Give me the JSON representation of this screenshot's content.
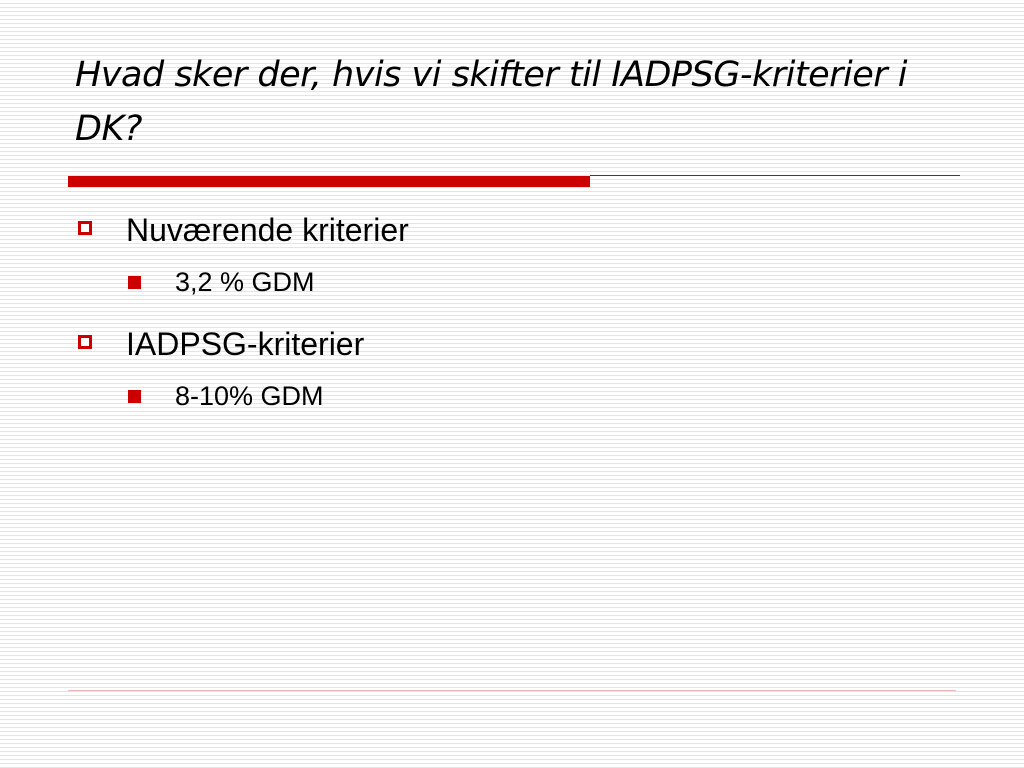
{
  "slide": {
    "title": "Hvad sker der, hvis vi skifter til IADPSG-kriterier i DK?",
    "bullets": [
      {
        "text": "Nuværende kriterier",
        "sub": [
          "3,2 % GDM"
        ]
      },
      {
        "text": "IADPSG-kriterier",
        "sub": [
          "8-10% GDM"
        ]
      }
    ]
  },
  "colors": {
    "accent": "#cc0000",
    "text": "#000000",
    "background": "#ffffff",
    "stripe": "#e4e4e4"
  },
  "icons": {
    "level1_bullet": "hollow-square-icon",
    "level2_bullet": "filled-square-icon"
  }
}
